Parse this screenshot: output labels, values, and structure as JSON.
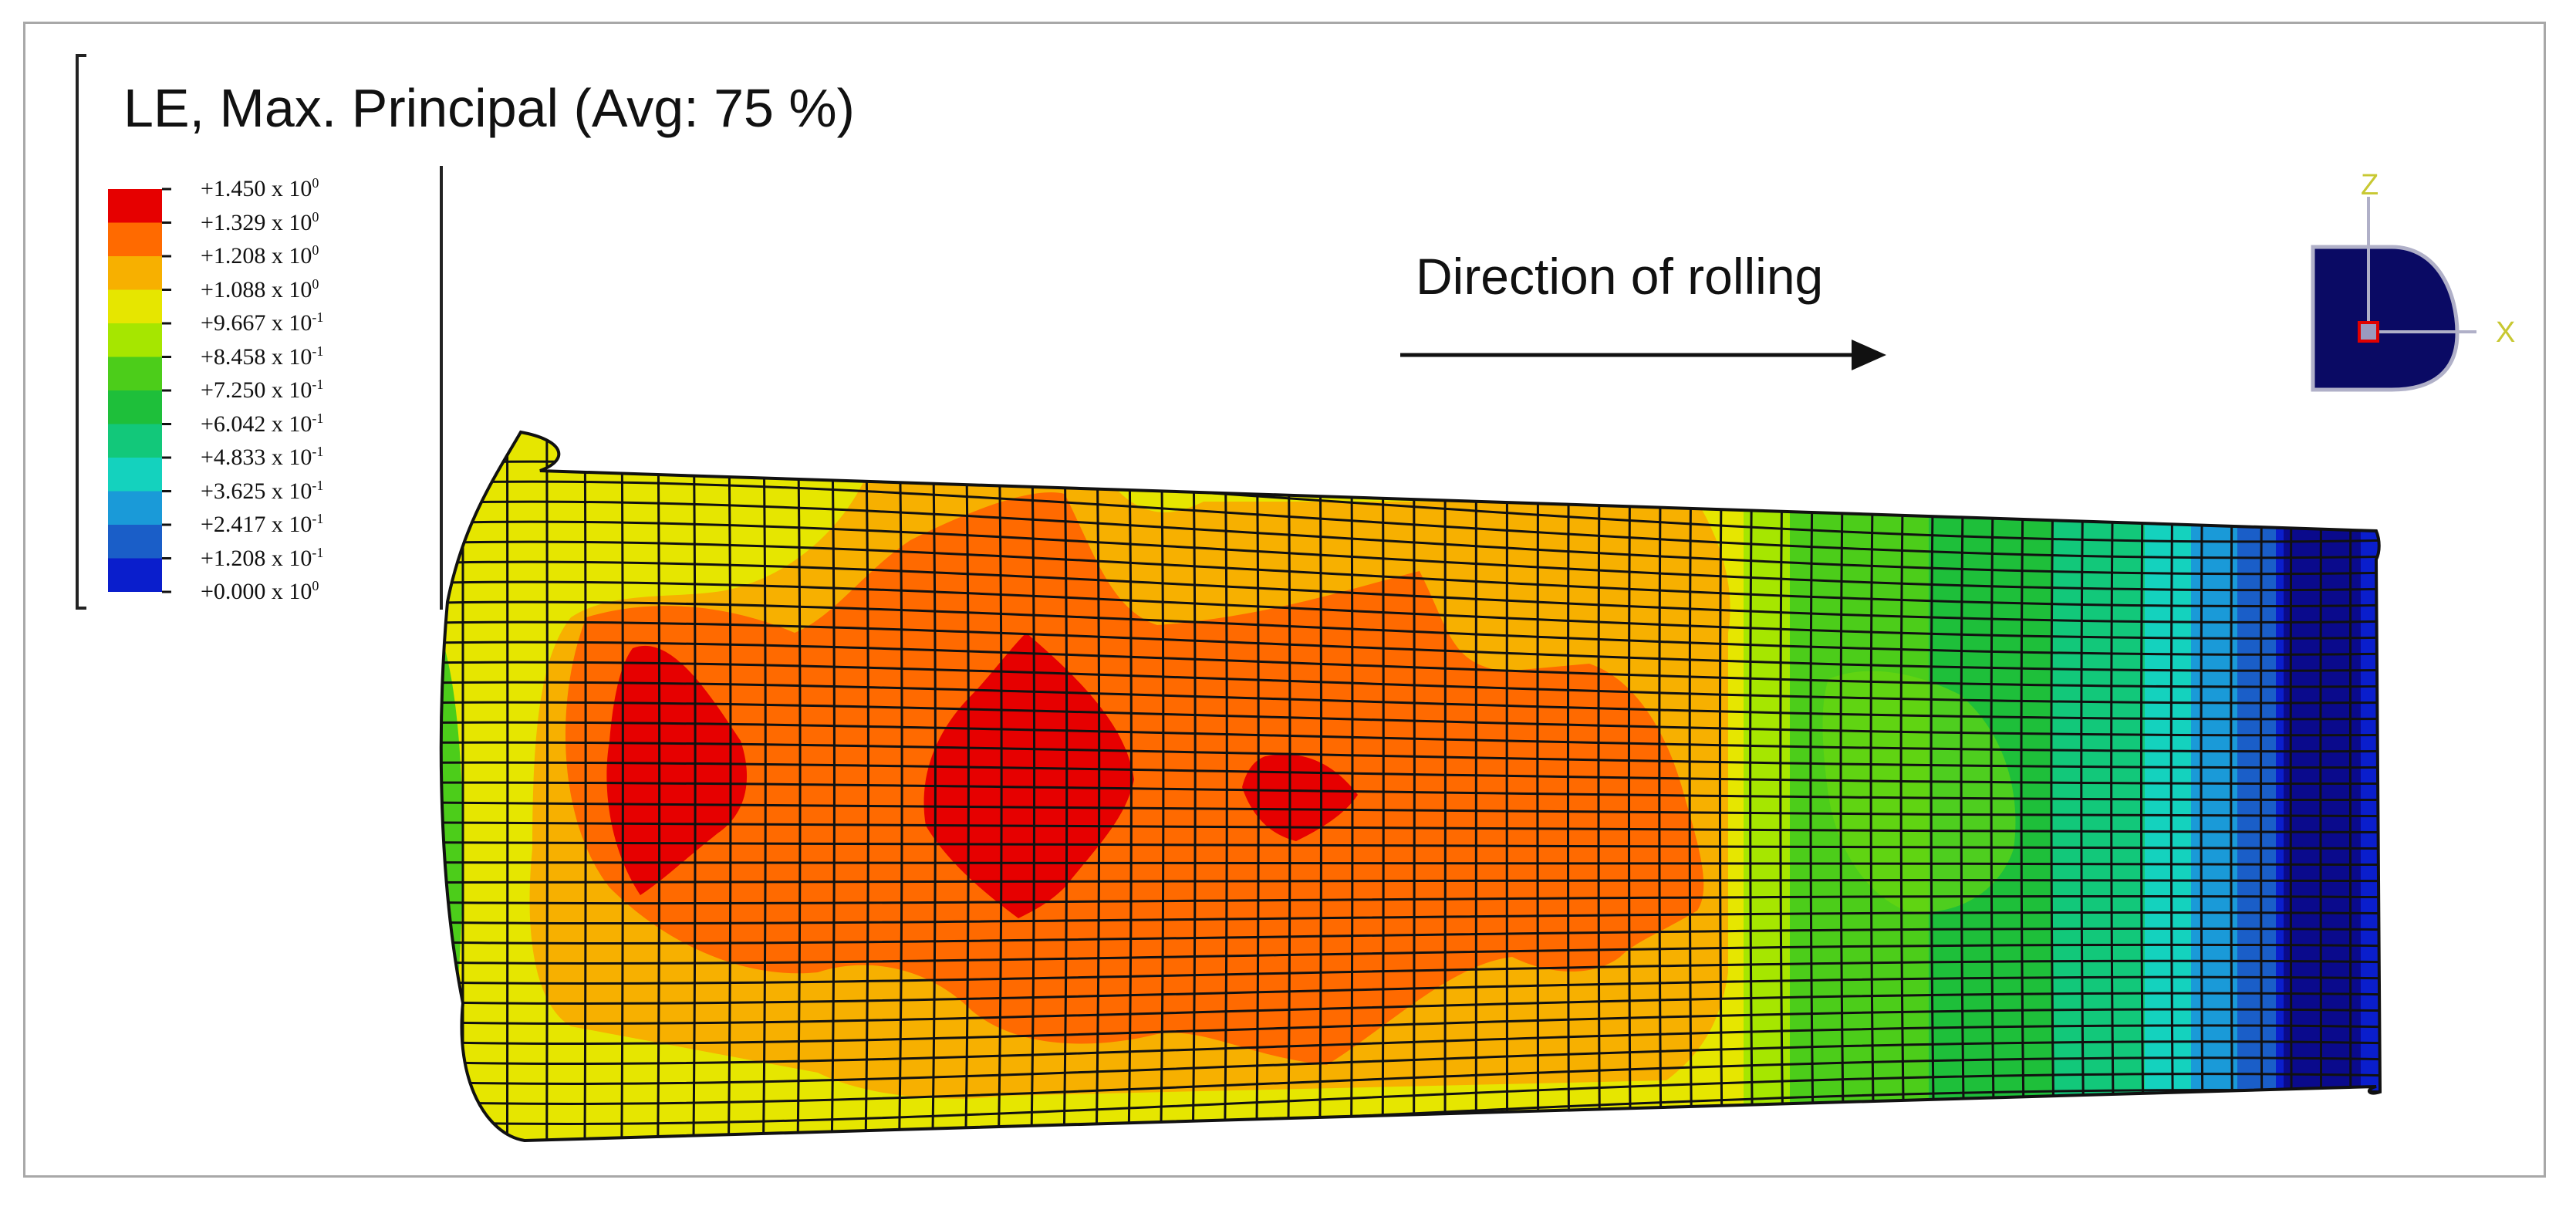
{
  "legend": {
    "title": "LE, Max. Principal (Avg: 75 %)",
    "levels": [
      {
        "mantissa": "+1.450",
        "exp": "0"
      },
      {
        "mantissa": "+1.329",
        "exp": "0"
      },
      {
        "mantissa": "+1.208",
        "exp": "0"
      },
      {
        "mantissa": "+1.088",
        "exp": "0"
      },
      {
        "mantissa": "+9.667",
        "exp": "-1"
      },
      {
        "mantissa": "+8.458",
        "exp": "-1"
      },
      {
        "mantissa": "+7.250",
        "exp": "-1"
      },
      {
        "mantissa": "+6.042",
        "exp": "-1"
      },
      {
        "mantissa": "+4.833",
        "exp": "-1"
      },
      {
        "mantissa": "+3.625",
        "exp": "-1"
      },
      {
        "mantissa": "+2.417",
        "exp": "-1"
      },
      {
        "mantissa": "+1.208",
        "exp": "-1"
      },
      {
        "mantissa": "+0.000",
        "exp": "0"
      }
    ],
    "colors": [
      "#e60000",
      "#ff6a00",
      "#f7b000",
      "#e6e600",
      "#a6e600",
      "#4ccd1a",
      "#1ebf3a",
      "#12c87a",
      "#14d2be",
      "#1a9ad8",
      "#1a5ec8",
      "#0a1ecc"
    ]
  },
  "annotation": {
    "direction_text": "Direction of rolling"
  },
  "triad": {
    "z_label": "Z",
    "x_label": "X",
    "label_color": "#c8c832",
    "body_color": "#0a0a64"
  }
}
